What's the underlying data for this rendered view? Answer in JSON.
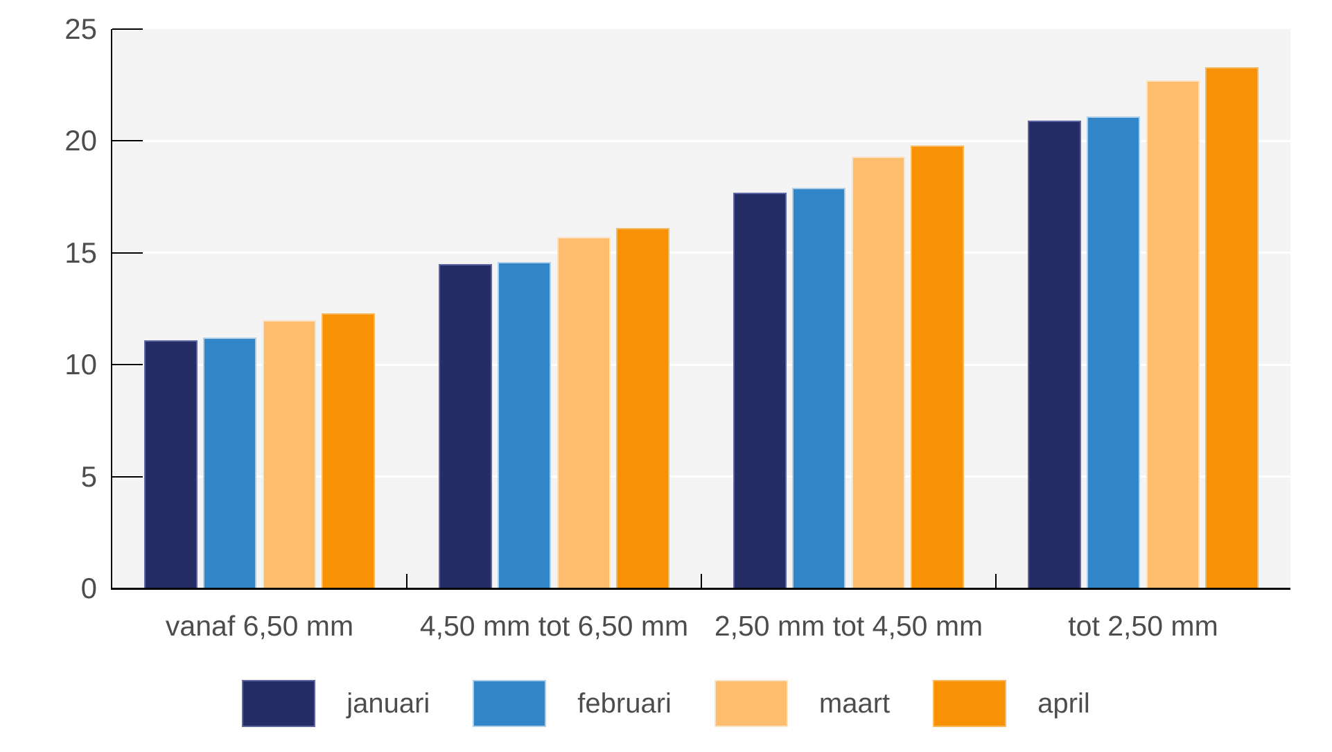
{
  "chart_data": {
    "type": "bar",
    "title": "",
    "xlabel": "",
    "ylabel": "",
    "categories": [
      "vanaf 6,50 mm",
      "4,50 mm tot 6,50 mm",
      "2,50 mm tot 4,50 mm",
      "tot 2,50 mm"
    ],
    "series": [
      {
        "name": "januari",
        "color": "#262d64",
        "edge_color": "#5f66a5",
        "values": [
          11.1,
          14.5,
          17.7,
          20.9
        ]
      },
      {
        "name": "februari",
        "color": "#3285c7",
        "edge_color": "#aecfea",
        "values": [
          11.2,
          14.6,
          17.9,
          21.1
        ]
      },
      {
        "name": "maart",
        "color": "#fcbd6e",
        "edge_color": "#fbe2c4",
        "values": [
          12.0,
          15.7,
          19.3,
          22.7
        ]
      },
      {
        "name": "april",
        "color": "#f89104",
        "edge_color": "#fbb75c",
        "values": [
          12.3,
          16.1,
          19.8,
          23.3
        ]
      }
    ],
    "y_axis": {
      "min": 0,
      "max": 25,
      "tick_interval": 5,
      "tick_labels": [
        "0",
        "5",
        "10",
        "15",
        "20",
        "25"
      ]
    },
    "grid": true,
    "legend_position": "bottom",
    "colors": {
      "plot_background": "#f4f4f4",
      "grid_line": "#ffffff",
      "axis_line": "#000000",
      "text": "#4d4d4d"
    }
  }
}
